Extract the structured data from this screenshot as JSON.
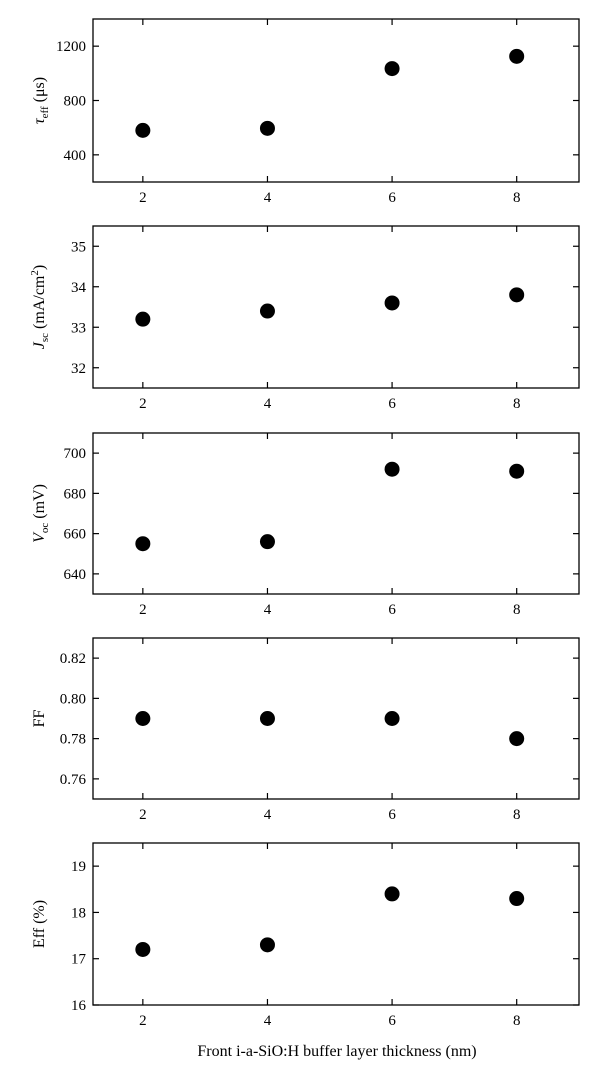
{
  "chart_data": [
    {
      "type": "scatter",
      "x": [
        2,
        4,
        6,
        8
      ],
      "y": [
        580,
        595,
        1035,
        1125
      ],
      "xlim": [
        1.2,
        9.0
      ],
      "ylim": [
        200,
        1400
      ],
      "yticks": [
        400,
        800,
        1200
      ],
      "xticks": [
        2,
        4,
        6,
        8
      ],
      "ylabel": {
        "main": "τ",
        "sub": "eff",
        "rest": " (μs)"
      }
    },
    {
      "type": "scatter",
      "x": [
        2,
        4,
        6,
        8
      ],
      "y": [
        33.2,
        33.4,
        33.6,
        33.8
      ],
      "xlim": [
        1.2,
        9.0
      ],
      "ylim": [
        31.5,
        35.5
      ],
      "yticks": [
        32,
        33,
        34,
        35
      ],
      "xticks": [
        2,
        4,
        6,
        8
      ],
      "ylabel": {
        "main": "J",
        "sub": "sc",
        "rest": " (mA/cm",
        "sup": "2",
        "end": ")"
      }
    },
    {
      "type": "scatter",
      "x": [
        2,
        4,
        6,
        8
      ],
      "y": [
        655,
        656,
        692,
        691
      ],
      "xlim": [
        1.2,
        9.0
      ],
      "ylim": [
        630,
        710
      ],
      "yticks": [
        640,
        660,
        680,
        700
      ],
      "xticks": [
        2,
        4,
        6,
        8
      ],
      "ylabel": {
        "main": "V",
        "sub": "oc",
        "rest": " (mV)"
      }
    },
    {
      "type": "scatter",
      "x": [
        2,
        4,
        6,
        8
      ],
      "y": [
        0.79,
        0.79,
        0.79,
        0.78
      ],
      "xlim": [
        1.2,
        9.0
      ],
      "ylim": [
        0.75,
        0.83
      ],
      "yticks": [
        "0.76",
        "0.78",
        "0.80",
        "0.82"
      ],
      "xticks": [
        2,
        4,
        6,
        8
      ],
      "ylabel": {
        "main": "FF"
      }
    },
    {
      "type": "scatter",
      "x": [
        2,
        4,
        6,
        8
      ],
      "y": [
        17.2,
        17.3,
        18.4,
        18.3
      ],
      "xlim": [
        1.2,
        9.0
      ],
      "ylim": [
        16,
        19.5
      ],
      "yticks": [
        16,
        17,
        18,
        19
      ],
      "xticks": [
        2,
        4,
        6,
        8
      ],
      "ylabel": {
        "main": "Eff (%)"
      }
    }
  ],
  "xlabel": "Front i-a-SiO:H buffer layer thickness (nm)"
}
